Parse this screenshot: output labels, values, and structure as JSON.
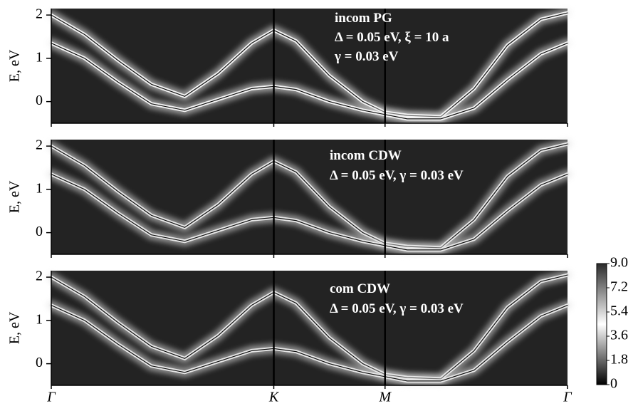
{
  "chart_data": [
    {
      "type": "line",
      "ylabel": "E, eV",
      "annotations": [
        "incom PG",
        "Δ = 0.05 eV, ξ = 10 a",
        "γ = 0.03 eV"
      ],
      "x": [
        0,
        0.15,
        0.3,
        0.45,
        0.6,
        0.75,
        0.9,
        1.0,
        1.1,
        1.25,
        1.4,
        1.5,
        1.6,
        1.75,
        1.9,
        2.05,
        2.2,
        2.32
      ],
      "series": [
        {
          "color": "#f2f2f2",
          "values": [
            2.0,
            1.55,
            0.95,
            0.4,
            0.12,
            0.65,
            1.35,
            1.65,
            1.4,
            0.6,
            0.0,
            -0.25,
            -0.32,
            -0.35,
            0.3,
            1.3,
            1.9,
            2.05
          ]
        },
        {
          "color": "#f2f2f2",
          "values": [
            1.35,
            1.0,
            0.45,
            -0.05,
            -0.2,
            0.05,
            0.3,
            0.35,
            0.28,
            0.0,
            -0.2,
            -0.3,
            -0.4,
            -0.4,
            -0.15,
            0.5,
            1.1,
            1.35
          ]
        }
      ],
      "xlim": [
        0,
        2.32
      ],
      "ylim": [
        -0.5,
        2.15
      ],
      "yticks": [
        0,
        1,
        2
      ],
      "xticks": [
        {
          "value": 0,
          "label": "Γ"
        },
        {
          "value": 1,
          "label": "K"
        },
        {
          "value": 1.5,
          "label": "M"
        },
        {
          "value": 2.32,
          "label": "Γ"
        }
      ],
      "background": "#232323"
    },
    {
      "type": "line",
      "ylabel": "E, eV",
      "annotations": [
        "incom CDW",
        "Δ = 0.05 eV, γ = 0.03 eV"
      ],
      "x": [
        0,
        0.15,
        0.3,
        0.45,
        0.6,
        0.75,
        0.9,
        1.0,
        1.1,
        1.25,
        1.4,
        1.5,
        1.6,
        1.75,
        1.9,
        2.05,
        2.2,
        2.32
      ],
      "series": [
        {
          "color": "#e6e6e6",
          "values": [
            2.0,
            1.55,
            0.95,
            0.4,
            0.12,
            0.65,
            1.35,
            1.65,
            1.4,
            0.6,
            0.0,
            -0.25,
            -0.32,
            -0.35,
            0.3,
            1.3,
            1.9,
            2.05
          ]
        },
        {
          "color": "#e6e6e6",
          "values": [
            1.35,
            1.0,
            0.45,
            -0.05,
            -0.2,
            0.05,
            0.3,
            0.35,
            0.28,
            0.0,
            -0.2,
            -0.3,
            -0.4,
            -0.4,
            -0.15,
            0.5,
            1.1,
            1.35
          ]
        }
      ],
      "xlim": [
        0,
        2.32
      ],
      "ylim": [
        -0.5,
        2.15
      ],
      "yticks": [
        0,
        1,
        2
      ],
      "xticks": [
        {
          "value": 0,
          "label": "Γ"
        },
        {
          "value": 1,
          "label": "K"
        },
        {
          "value": 1.5,
          "label": "M"
        },
        {
          "value": 2.32,
          "label": "Γ"
        }
      ],
      "background": "#232323"
    },
    {
      "type": "line",
      "ylabel": "E, eV",
      "annotations": [
        "com CDW",
        "Δ = 0.05 eV, γ = 0.03 eV"
      ],
      "x": [
        0,
        0.15,
        0.3,
        0.45,
        0.6,
        0.75,
        0.9,
        1.0,
        1.1,
        1.25,
        1.4,
        1.5,
        1.6,
        1.75,
        1.9,
        2.05,
        2.2,
        2.32
      ],
      "series": [
        {
          "color": "#e6e6e6",
          "values": [
            2.0,
            1.55,
            0.95,
            0.4,
            0.12,
            0.65,
            1.35,
            1.65,
            1.4,
            0.6,
            0.0,
            -0.25,
            -0.32,
            -0.35,
            0.3,
            1.3,
            1.9,
            2.05
          ]
        },
        {
          "color": "#e6e6e6",
          "values": [
            1.35,
            1.0,
            0.45,
            -0.05,
            -0.2,
            0.05,
            0.3,
            0.35,
            0.28,
            0.0,
            -0.2,
            -0.3,
            -0.4,
            -0.4,
            -0.15,
            0.5,
            1.1,
            1.35
          ]
        }
      ],
      "xlim": [
        0,
        2.32
      ],
      "ylim": [
        -0.5,
        2.15
      ],
      "yticks": [
        0,
        1,
        2
      ],
      "xticks": [
        {
          "value": 0,
          "label": "Γ"
        },
        {
          "value": 1,
          "label": "K"
        },
        {
          "value": 1.5,
          "label": "M"
        },
        {
          "value": 2.32,
          "label": "Γ"
        }
      ],
      "background": "#232323"
    }
  ],
  "colorbar": {
    "lim": [
      0,
      9
    ],
    "ticks": [
      0,
      1.8,
      3.6,
      5.4,
      7.2,
      {
        "value": 9,
        "label": "9.0"
      }
    ],
    "colors": [
      "#000000",
      "#ffffff",
      "#2a2a2a"
    ]
  }
}
